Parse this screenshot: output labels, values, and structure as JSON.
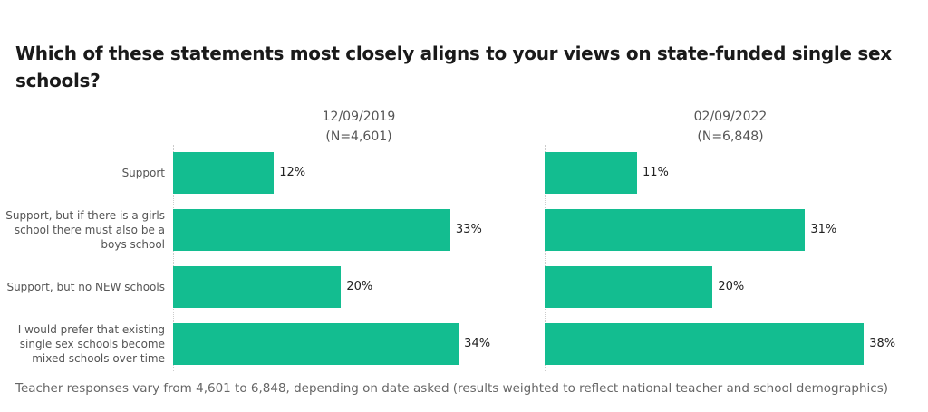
{
  "chart_data": {
    "type": "bar",
    "orientation": "horizontal",
    "title": "Which of these statements most closely aligns to your views on state-funded single sex schools?",
    "categories": [
      "Support",
      "Support, but if there is a girls school there must also be a boys school",
      "Support, but no NEW schools",
      "I would prefer that existing single sex schools become mixed schools over time"
    ],
    "panels": [
      {
        "date": "12/09/2019",
        "n": "(N=4,601)",
        "values": [
          12,
          33,
          20,
          34
        ],
        "labels": [
          "12%",
          "33%",
          "20%",
          "34%"
        ]
      },
      {
        "date": "02/09/2022",
        "n": "(N=6,848)",
        "values": [
          11,
          31,
          20,
          38
        ],
        "labels": [
          "11%",
          "31%",
          "20%",
          "38%"
        ]
      }
    ],
    "bar_color": "#13bd90",
    "note": "Teacher responses vary from 4,601 to 6,848, depending on date asked (results weighted to reflect national teacher and school demographics)"
  }
}
